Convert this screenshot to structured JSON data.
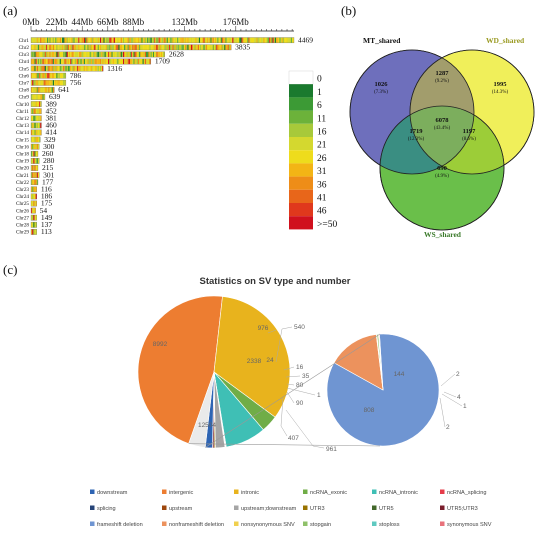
{
  "panels": {
    "a": "(a)",
    "b": "(b)",
    "c": "(c)"
  },
  "chart_data": [
    {
      "type": "heatmap",
      "x_ticks": [
        "0Mb",
        "22Mb",
        "44Mb",
        "66Mb",
        "88Mb",
        "132Mb",
        "176Mb"
      ],
      "x_tick_values": [
        0,
        22,
        44,
        66,
        88,
        132,
        176
      ],
      "xlim": [
        0,
        226
      ],
      "chromosomes": [
        "Chr1",
        "Chr2",
        "Chr3",
        "Chr4",
        "Chr5",
        "Chr6",
        "Chr7",
        "Chr8",
        "Chr9",
        "Chr10",
        "Chr11",
        "Chr12",
        "Chr13",
        "Chr14",
        "Chr15",
        "Chr16",
        "Chr18",
        "Chr19",
        "Chr20",
        "Chr21",
        "Chr22",
        "Chr23",
        "Chr24",
        "Chr25",
        "Chr26",
        "Chr27",
        "Chr28",
        "Chr29"
      ],
      "lengths": [
        226,
        172,
        115,
        103,
        62,
        30,
        30,
        20,
        12,
        9,
        9,
        9,
        9,
        9,
        8,
        7,
        6,
        7,
        6,
        7,
        6,
        5,
        5,
        5,
        4,
        5,
        5,
        5
      ],
      "counts": [
        4469,
        3835,
        2628,
        1709,
        1316,
        786,
        756,
        641,
        639,
        389,
        452,
        381,
        460,
        414,
        329,
        300,
        260,
        280,
        215,
        301,
        177,
        116,
        186,
        175,
        54,
        149,
        137,
        113
      ],
      "legend_labels": [
        "0",
        "1",
        "6",
        "11",
        "16",
        "21",
        "26",
        "31",
        "36",
        "41",
        "46",
        ">=50"
      ],
      "legend_colors": [
        "#ffffff",
        "#1a7a2e",
        "#3c9a35",
        "#6cb23a",
        "#a7c93a",
        "#d4d82f",
        "#eedc1c",
        "#f3b515",
        "#ee8d18",
        "#e8661a",
        "#e0381c",
        "#d0101d"
      ]
    },
    {
      "type": "venn",
      "sets": [
        {
          "label": "MT_shared",
          "color": "#4a54ac"
        },
        {
          "label": "WD_shared",
          "color": "#f0ef5a"
        },
        {
          "label": "WS_shared",
          "color": "#6abf4a"
        }
      ],
      "regions": [
        {
          "value": "1026",
          "pct": "(7.3%)"
        },
        {
          "value": "1287",
          "pct": "(9.2%)"
        },
        {
          "value": "1995",
          "pct": "(14.3%)"
        },
        {
          "value": "6078",
          "pct": "(43.4%)"
        },
        {
          "value": "1719",
          "pct": "(12.3%)"
        },
        {
          "value": "1197",
          "pct": "(8.6%)"
        },
        {
          "value": "690",
          "pct": "(4.9%)"
        }
      ]
    },
    {
      "type": "pie",
      "title": "Statistics on SV type and number",
      "main_slices": [
        {
          "label": "intergenic",
          "value": 12504,
          "color": "#ed7d31"
        },
        {
          "label": "intronic",
          "value": 8992,
          "color": "#e8b31d"
        },
        {
          "label": "ncRNA_exonic",
          "value": 976,
          "color": "#70ad47"
        },
        {
          "label": "ncRNA_intronic",
          "value": 2338,
          "color": "#3fbfb5"
        },
        {
          "label": "ncRNA_splicing",
          "value": 24,
          "color": "#e63c4a"
        },
        {
          "label": "splicing",
          "value": 16,
          "color": "#264478"
        },
        {
          "label": "upstream",
          "value": 35,
          "color": "#9e480e"
        },
        {
          "label": "upstream;downstream",
          "value": 540,
          "color": "#a5a5a5"
        },
        {
          "label": "UTR3",
          "value": 80,
          "color": "#997300"
        },
        {
          "label": "UTR5",
          "value": 1,
          "color": "#43682b"
        },
        {
          "label": "UTR5;UTR3",
          "value": 90,
          "color": "#7a1e2c"
        },
        {
          "label": "downstream",
          "value": 407,
          "color": "#2e64b3"
        },
        {
          "label": "exonic",
          "value": 961,
          "color": "#eaeaea"
        }
      ],
      "sub_slices": [
        {
          "label": "frameshift deletion",
          "value": 808,
          "color": "#6f95d2"
        },
        {
          "label": "nonframeshift deletion",
          "value": 144,
          "color": "#ec925d"
        },
        {
          "label": "nonsynonymous SNV",
          "value": 2,
          "color": "#f0d04e"
        },
        {
          "label": "stopgain",
          "value": 4,
          "color": "#8fc16a"
        },
        {
          "label": "stoploss",
          "value": 1,
          "color": "#5fc9c0"
        },
        {
          "label": "synonymous SNV",
          "value": 2,
          "color": "#e8727b"
        }
      ],
      "legend": [
        {
          "label": "downstream",
          "color": "#2e64b3"
        },
        {
          "label": "intergenic",
          "color": "#ed7d31"
        },
        {
          "label": "intronic",
          "color": "#e8b31d"
        },
        {
          "label": "ncRNA_exonic",
          "color": "#70ad47"
        },
        {
          "label": "ncRNA_intronic",
          "color": "#3fbfb5"
        },
        {
          "label": "ncRNA_splicing",
          "color": "#e63c4a"
        },
        {
          "label": "splicing",
          "color": "#264478"
        },
        {
          "label": "upstream",
          "color": "#9e480e"
        },
        {
          "label": "upstream;downstream",
          "color": "#a5a5a5"
        },
        {
          "label": "UTR3",
          "color": "#997300"
        },
        {
          "label": "UTR5",
          "color": "#43682b"
        },
        {
          "label": "UTR5;UTR3",
          "color": "#7a1e2c"
        },
        {
          "label": "frameshift deletion",
          "color": "#6f95d2"
        },
        {
          "label": "nonframeshift deletion",
          "color": "#ec925d"
        },
        {
          "label": "nonsynonymous SNV",
          "color": "#f0d04e"
        },
        {
          "label": "stopgain",
          "color": "#8fc16a"
        },
        {
          "label": "stoploss",
          "color": "#5fc9c0"
        },
        {
          "label": "synonymous SNV",
          "color": "#e8727b"
        }
      ]
    }
  ]
}
